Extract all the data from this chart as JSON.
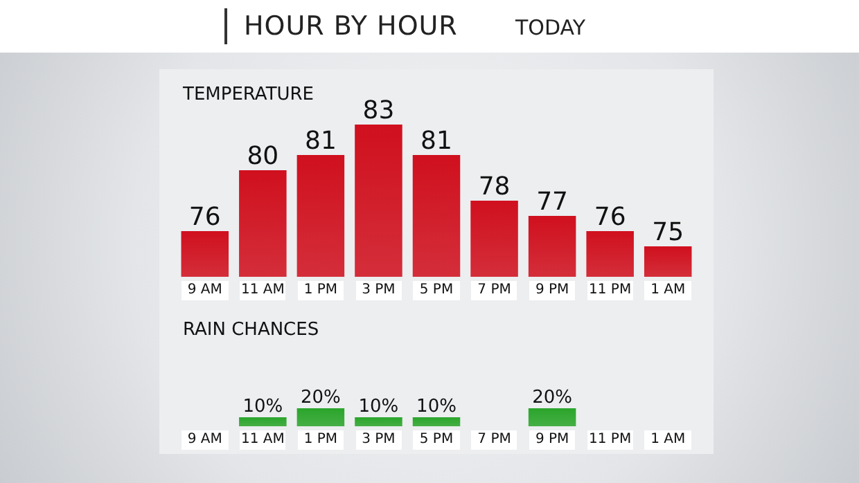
{
  "chart_data": [
    {
      "type": "other",
      "title": "HOUR BY HOUR",
      "subtitle": "TODAY"
    },
    {
      "type": "bar",
      "title": "TEMPERATURE",
      "categories": [
        "9 AM",
        "11 AM",
        "1 PM",
        "3 PM",
        "5 PM",
        "7 PM",
        "9 PM",
        "11 PM",
        "1 AM"
      ],
      "values": [
        76,
        80,
        81,
        83,
        81,
        78,
        77,
        76,
        75
      ],
      "color": "#d0101e",
      "ylim": [
        73,
        83
      ],
      "data_labels": true,
      "tick_labels": "x"
    },
    {
      "type": "bar",
      "title": "RAIN CHANCES",
      "categories": [
        "9 AM",
        "11 AM",
        "1 PM",
        "3 PM",
        "5 PM",
        "7 PM",
        "9 PM",
        "11 PM",
        "1 AM"
      ],
      "values": [
        null,
        10,
        20,
        10,
        10,
        null,
        20,
        null,
        null
      ],
      "value_labels": [
        null,
        "10%",
        "20%",
        "10%",
        "10%",
        null,
        "20%",
        null,
        null
      ],
      "color": "#2ba52b",
      "tick_labels": "x"
    }
  ]
}
